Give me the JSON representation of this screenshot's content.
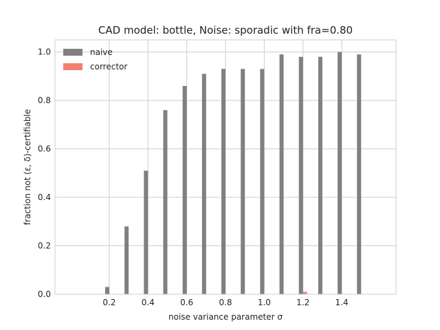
{
  "chart_data": {
    "type": "bar",
    "title": "CAD model: bottle, Noise: sporadic with fra=0.80",
    "xlabel": "noise variance parameter σ",
    "ylabel": "fraction not (ε, δ)-certifiable",
    "x": [
      0.1,
      0.2,
      0.3,
      0.4,
      0.5,
      0.6,
      0.7,
      0.8,
      0.9,
      1.0,
      1.1,
      1.2,
      1.3,
      1.4,
      1.5
    ],
    "series": [
      {
        "name": "naive",
        "color": "#808080",
        "values": [
          0.0,
          0.03,
          0.28,
          0.51,
          0.76,
          0.86,
          0.91,
          0.93,
          0.93,
          0.93,
          0.99,
          0.98,
          0.98,
          1.0,
          0.99
        ]
      },
      {
        "name": "corrector",
        "color": "#f08070",
        "values": [
          0,
          0,
          0,
          0,
          0,
          0,
          0,
          0,
          0,
          0,
          0,
          0.01,
          0,
          0,
          0
        ]
      }
    ],
    "xlim": [
      -0.08,
      1.68
    ],
    "ylim": [
      0,
      1.05
    ],
    "xticks": [
      0.2,
      0.4,
      0.6,
      0.8,
      1.0,
      1.2,
      1.4
    ],
    "xtick_labels": [
      "0.2",
      "0.4",
      "0.6",
      "0.8",
      "1.0",
      "1.2",
      "1.4"
    ],
    "yticks": [
      0.0,
      0.2,
      0.4,
      0.6,
      0.8,
      1.0
    ],
    "ytick_labels": [
      "0.0",
      "0.2",
      "0.4",
      "0.6",
      "0.8",
      "1.0"
    ],
    "grid": true,
    "legend_position": "top-left",
    "style": {
      "grid_color": "#cccccc",
      "frame_color": "#cccccc"
    }
  }
}
